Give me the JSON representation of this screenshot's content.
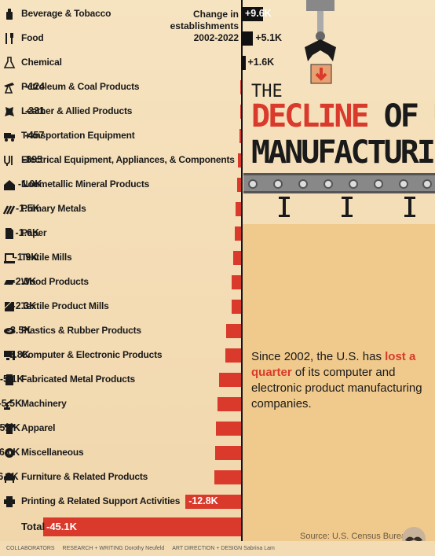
{
  "header": {
    "change_label_line1": "Change in establishments",
    "change_label_line2": "2002-2022"
  },
  "title": {
    "the": "THE",
    "decline": "DECLINE",
    "of_us": " OF U.S.",
    "manufacturing": "MANUFACTURING"
  },
  "note": {
    "before": "Since 2002, the U.S. has ",
    "highlight": "lost a quarter",
    "after": " of its computer and electronic product manufacturing companies."
  },
  "source": "Source: U.S. Census Bureau",
  "footer": {
    "collaborators": "COLLABORATORS",
    "research": "RESEARCH + WRITING Dorothy Neufeld",
    "art": "ART DIRECTION + DESIGN Sabrina Lam"
  },
  "colors": {
    "negative": "#d93a2b",
    "positive": "#111111",
    "accent": "#d93a2b"
  },
  "chart_data": {
    "type": "bar",
    "orientation": "horizontal",
    "title": "",
    "value_label": "Change in establishments 2002-2022",
    "categories": [
      "Beverage & Tobacco",
      "Food",
      "Chemical",
      "Petroleum & Coal Products",
      "Leather & Allied Products",
      "Transportation Equipment",
      "Electrical Equipment, Appliances, & Components",
      "Nonmetallic Mineral Products",
      "Primary Metals",
      "Paper",
      "Textile Mills",
      "Wood Products",
      "Textile Product Mills",
      "Plastics & Rubber Products",
      "Computer & Electronic Products",
      "Fabricated Metal Products",
      "Machinery",
      "Apparel",
      "Miscellaneous",
      "Furniture & Related Products",
      "Printing & Related Support Activities"
    ],
    "values": [
      9600,
      5100,
      1600,
      -124,
      -331,
      -457,
      -895,
      -1000,
      -1500,
      -1600,
      -1900,
      -2300,
      -2300,
      -3500,
      -3800,
      -5100,
      -5500,
      -5900,
      -6000,
      -6300,
      -12800
    ],
    "value_labels": [
      "+9.6K",
      "+5.1K",
      "+1.6K",
      "-124",
      "-331",
      "-457",
      "-895",
      "-1.0K",
      "-1.5K",
      "-1.6K",
      "-1.9K",
      "-2.3K",
      "-2.3K",
      "-3.5K",
      "-3.8K",
      "-5.1K",
      "-5.5K",
      "-5.9K",
      "-6.0K",
      "-6.3K",
      "-12.8K"
    ],
    "icons": [
      "bottle-icon",
      "fork-knife-icon",
      "flask-icon",
      "oil-pump-icon",
      "hide-icon",
      "truck-icon",
      "plug-icon",
      "house-icon",
      "metal-bars-icon",
      "paper-icon",
      "sewing-machine-icon",
      "wood-plank-icon",
      "fabric-icon",
      "tape-roll-icon",
      "computer-icon",
      "metal-part-icon",
      "robot-arm-icon",
      "shirt-icon",
      "gear-icon",
      "sofa-icon",
      "printer-icon"
    ],
    "total": {
      "label": "Total",
      "value": -45100,
      "value_label": "-45.1K"
    }
  }
}
